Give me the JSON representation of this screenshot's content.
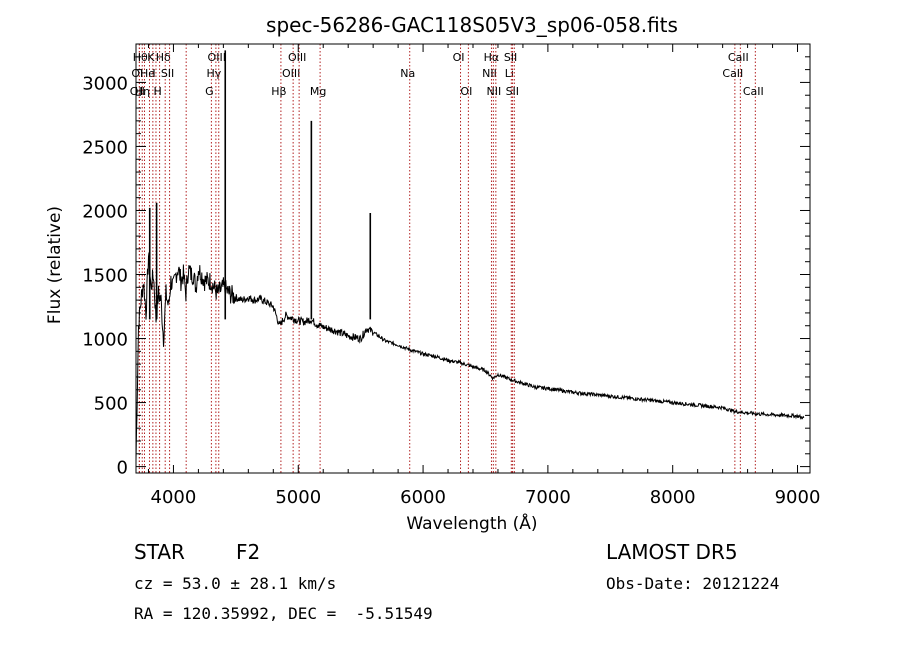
{
  "chart_data": {
    "type": "line",
    "title": "spec-56286-GAC118S05V3_sp06-058.fits",
    "xlabel": "Wavelength (Å)",
    "ylabel": "Flux (relative)",
    "xlim": [
      3700,
      9100
    ],
    "ylim": [
      -50,
      3300
    ],
    "xticks": [
      4000,
      5000,
      6000,
      7000,
      8000,
      9000
    ],
    "yticks": [
      0,
      500,
      1000,
      1500,
      2000,
      2500,
      3000
    ],
    "grid": false,
    "series": [
      {
        "x": [
          3700,
          3720,
          3740,
          3760,
          3780,
          3800,
          3820,
          3840,
          3860,
          3880,
          3900,
          3920,
          3940,
          3960,
          3980,
          4000,
          4020,
          4040,
          4060,
          4080,
          4100,
          4120,
          4140,
          4160,
          4180,
          4200,
          4250,
          4300,
          4350,
          4400,
          4450,
          4500,
          4550,
          4600,
          4650,
          4700,
          4750,
          4800,
          4850,
          4900,
          4950,
          5000,
          5050,
          5100,
          5150,
          5200,
          5300,
          5400,
          5500,
          5550,
          5600,
          5700,
          5800,
          5900,
          6000,
          6100,
          6200,
          6300,
          6400,
          6500,
          6560,
          6600,
          6700,
          6800,
          6900,
          7000,
          7200,
          7400,
          7600,
          7800,
          8000,
          8200,
          8400,
          8500,
          8600,
          8700,
          8800,
          8900,
          9000,
          9050
        ],
        "y": [
          50,
          1100,
          1300,
          1450,
          1200,
          1650,
          1400,
          1500,
          1150,
          1350,
          1300,
          1000,
          1350,
          1250,
          1450,
          1400,
          1500,
          1550,
          1450,
          1500,
          1350,
          1550,
          1500,
          1500,
          1400,
          1550,
          1450,
          1450,
          1350,
          1400,
          1350,
          1320,
          1300,
          1320,
          1300,
          1310,
          1280,
          1250,
          1100,
          1180,
          1160,
          1140,
          1130,
          1150,
          1110,
          1090,
          1060,
          1020,
          1000,
          1080,
          1050,
          980,
          950,
          910,
          880,
          860,
          830,
          810,
          780,
          750,
          690,
          720,
          680,
          650,
          620,
          610,
          580,
          560,
          540,
          520,
          500,
          480,
          460,
          430,
          420,
          410,
          405,
          400,
          395,
          380
        ]
      }
    ],
    "emission_spikes": [
      {
        "x": 4415,
        "y": 3250
      },
      {
        "x": 5105,
        "y": 2700
      },
      {
        "x": 5577,
        "y": 1980
      },
      {
        "x": 3810,
        "y": 2020
      },
      {
        "x": 3865,
        "y": 2060
      }
    ],
    "line_markers": [
      {
        "x": 3727,
        "label": "OII",
        "row": 3
      },
      {
        "x": 3727,
        "label": "OI",
        "row": 2
      },
      {
        "x": 3750,
        "label": "Hθ",
        "row": 1
      },
      {
        "x": 3768,
        "label": "Hη",
        "row": 3
      },
      {
        "x": 3808,
        "label": "He",
        "row": 2
      },
      {
        "x": 3835,
        "label": "K",
        "row": 1
      },
      {
        "x": 3860,
        "label": "I",
        "row": 2
      },
      {
        "x": 3889,
        "label": "H",
        "row": 3
      },
      {
        "x": 3934,
        "label": "Hδ",
        "row": 1
      },
      {
        "x": 3969,
        "label": "SII",
        "row": 2
      },
      {
        "x": 4102,
        "label": "",
        "row": 0
      },
      {
        "x": 4304,
        "label": "G",
        "row": 3
      },
      {
        "x": 4340,
        "label": "Hγ",
        "row": 2
      },
      {
        "x": 4363,
        "label": "OIII",
        "row": 1
      },
      {
        "x": 4861,
        "label": "Hβ",
        "row": 3
      },
      {
        "x": 4959,
        "label": "OIII",
        "row": 2
      },
      {
        "x": 5007,
        "label": "OIII",
        "row": 1
      },
      {
        "x": 5175,
        "label": "Mg",
        "row": 3
      },
      {
        "x": 5893,
        "label": "Na",
        "row": 2
      },
      {
        "x": 6300,
        "label": "OI",
        "row": 1
      },
      {
        "x": 6363,
        "label": "OI",
        "row": 3
      },
      {
        "x": 6548,
        "label": "NII",
        "row": 2
      },
      {
        "x": 6563,
        "label": "Hα",
        "row": 1
      },
      {
        "x": 6583,
        "label": "NII",
        "row": 3
      },
      {
        "x": 6707,
        "label": "Li",
        "row": 2
      },
      {
        "x": 6717,
        "label": "SII",
        "row": 1
      },
      {
        "x": 6731,
        "label": "SII",
        "row": 3
      },
      {
        "x": 8498,
        "label": "CaII",
        "row": 2
      },
      {
        "x": 8542,
        "label": "CaII",
        "row": 1
      },
      {
        "x": 8662,
        "label": "CaII",
        "row": 3
      }
    ]
  },
  "info": {
    "class_label": "STAR",
    "subclass": "F2",
    "survey": "LAMOST DR5",
    "cz": "cz = 53.0 ± 28.1 km/s",
    "obs_date": "Obs-Date: 20121224",
    "radec": "RA = 120.35992, DEC =  -5.51549"
  },
  "colors": {
    "spectrum": "#000000",
    "marker": "#b22222",
    "frame": "#000000"
  }
}
